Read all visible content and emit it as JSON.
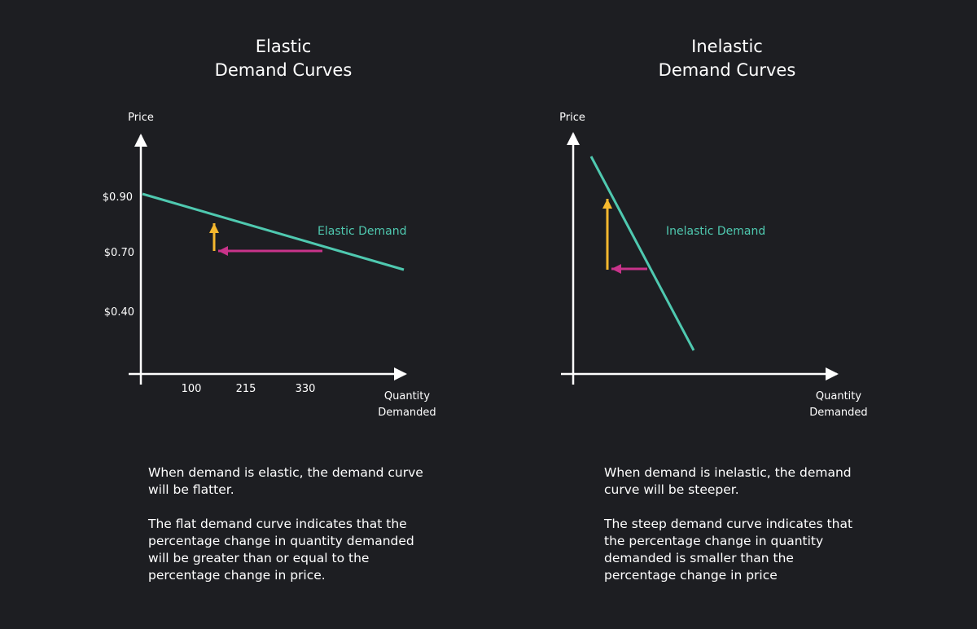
{
  "colors": {
    "background": "#1d1e22",
    "curve": "#4fc9b0",
    "price_change_arrow": "#f5b82e",
    "quantity_change_arrow": "#c8338a",
    "axes": "#ffffff"
  },
  "left": {
    "title_line1": "Elastic",
    "title_line2": "Demand Curves",
    "y_axis_label": "Price",
    "x_axis_label_line1": "Quantity",
    "x_axis_label_line2": "Demanded",
    "y_ticks": [
      "$0.90",
      "$0.70",
      "$0.40"
    ],
    "x_ticks": [
      "100",
      "215",
      "330"
    ],
    "curve_label": "Elastic Demand",
    "paragraph1": "When demand is elastic, the demand curve will be flatter.",
    "paragraph2": "The flat demand curve indicates that the percentage change in quantity demanded will be greater than or equal to the percentage change in price."
  },
  "right": {
    "title_line1": "Inelastic",
    "title_line2": "Demand Curves",
    "y_axis_label": "Price",
    "x_axis_label_line1": "Quantity",
    "x_axis_label_line2": "Demanded",
    "curve_label": "Inelastic Demand",
    "paragraph1": "When demand is inelastic, the demand curve will be steeper.",
    "paragraph2": "The steep demand curve indicates that the percentage change in quantity demanded is smaller than the percentage change in price"
  }
}
